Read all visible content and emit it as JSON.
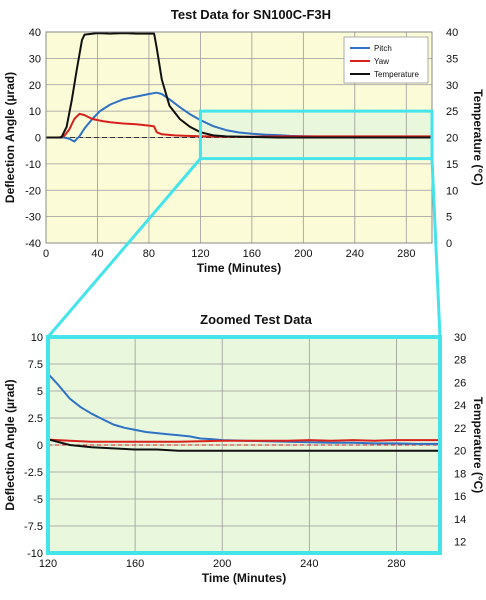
{
  "chart_data": [
    {
      "type": "line",
      "title": "Test Data for SN100C-F3H",
      "xlabel": "Time (Minutes)",
      "ylabel": "Deflection Angle (µrad)",
      "y2label": "Temperature (°C)",
      "xlim": [
        0,
        300
      ],
      "ylim": [
        -40,
        40
      ],
      "y2lim": [
        0,
        40
      ],
      "xticks": [
        0,
        40,
        80,
        120,
        160,
        200,
        240,
        280
      ],
      "yticks": [
        -40,
        -30,
        -20,
        -10,
        0,
        10,
        20,
        30,
        40
      ],
      "y2ticks": [
        0,
        5,
        10,
        15,
        20,
        25,
        30,
        35,
        40
      ],
      "grid": true,
      "legend_position": "top-right",
      "plot_background": "#fcfbd8",
      "zoom_region_background": "#e9f8dd",
      "zoom_box": {
        "x": [
          120,
          300
        ],
        "y": [
          -8,
          10
        ],
        "color": "#45e3ea"
      },
      "series": [
        {
          "name": "Pitch",
          "axis": "left",
          "color": "#2f72c4",
          "x": [
            0,
            10,
            14,
            18,
            22,
            26,
            30,
            36,
            42,
            50,
            60,
            70,
            80,
            86,
            90,
            96,
            104,
            112,
            120,
            130,
            140,
            150,
            160,
            170,
            180,
            190,
            200,
            220,
            240,
            260,
            280,
            300
          ],
          "y": [
            0,
            0,
            0,
            -0.5,
            -1.5,
            0.5,
            3.5,
            7,
            10,
            12.5,
            14.5,
            15.5,
            16.5,
            17,
            16.5,
            14.5,
            11.5,
            8.8,
            6.6,
            4.3,
            2.8,
            1.9,
            1.4,
            1.1,
            0.9,
            0.6,
            0.45,
            0.3,
            0.2,
            0.2,
            0.15,
            0.1
          ]
        },
        {
          "name": "Yaw",
          "axis": "left",
          "color": "#d6201c",
          "x": [
            0,
            10,
            14,
            18,
            22,
            26,
            30,
            36,
            44,
            50,
            60,
            70,
            80,
            84,
            86,
            90,
            100,
            110,
            120,
            140,
            160,
            180,
            200,
            220,
            240,
            260,
            280,
            300
          ],
          "y": [
            0,
            0,
            0.5,
            3,
            7,
            9,
            8.5,
            7,
            6.2,
            5.8,
            5.3,
            5,
            4.5,
            4.2,
            2,
            1.2,
            0.8,
            0.6,
            0.5,
            0.3,
            0.3,
            0.4,
            0.4,
            0.4,
            0.4,
            0.4,
            0.4,
            0.4
          ]
        },
        {
          "name": "Temperature",
          "axis": "right",
          "color": "#111111",
          "x": [
            0,
            12,
            16,
            20,
            24,
            28,
            30,
            40,
            50,
            60,
            70,
            80,
            84,
            86,
            90,
            96,
            104,
            112,
            120,
            130,
            140,
            160,
            180,
            200,
            220,
            240,
            260,
            280,
            300
          ],
          "y": [
            20,
            20,
            22,
            27,
            33,
            38.5,
            39.5,
            39.8,
            39.7,
            39.8,
            39.7,
            39.7,
            39.7,
            37,
            31,
            26,
            23.5,
            22,
            21,
            20.4,
            20.2,
            20.1,
            20,
            20,
            20,
            20,
            20,
            20,
            20
          ]
        }
      ]
    },
    {
      "type": "line",
      "title": "Zoomed Test Data",
      "xlabel": "Time (Minutes)",
      "ylabel": "Deflection Angle (µrad)",
      "y2label": "Temperature (°C)",
      "xlim": [
        120,
        300
      ],
      "ylim": [
        -10,
        10
      ],
      "y2lim": [
        11,
        30
      ],
      "xticks": [
        120,
        160,
        200,
        240,
        280
      ],
      "yticks": [
        -10,
        -7.5,
        -5,
        -2.5,
        0,
        2.5,
        5,
        7.5,
        10
      ],
      "y2ticks": [
        12,
        14,
        16,
        18,
        20,
        22,
        24,
        26,
        28,
        30
      ],
      "grid": true,
      "plot_background": "#e9f8dd",
      "border_color": "#45e3ea",
      "series": [
        {
          "name": "Pitch",
          "axis": "left",
          "color": "#2f72c4",
          "x": [
            120,
            125,
            130,
            135,
            140,
            145,
            150,
            155,
            160,
            165,
            170,
            175,
            180,
            185,
            190,
            195,
            200,
            210,
            220,
            230,
            240,
            250,
            260,
            270,
            280,
            290,
            300
          ],
          "y": [
            6.6,
            5.5,
            4.3,
            3.5,
            2.9,
            2.4,
            1.9,
            1.6,
            1.4,
            1.2,
            1.1,
            1.0,
            0.9,
            0.8,
            0.6,
            0.55,
            0.45,
            0.4,
            0.35,
            0.3,
            0.25,
            0.2,
            0.2,
            0.15,
            0.15,
            0.1,
            0.1
          ]
        },
        {
          "name": "Yaw",
          "axis": "left",
          "color": "#d6201c",
          "x": [
            120,
            130,
            140,
            150,
            160,
            170,
            180,
            190,
            200,
            210,
            220,
            230,
            240,
            250,
            260,
            270,
            280,
            290,
            300
          ],
          "y": [
            0.5,
            0.4,
            0.3,
            0.3,
            0.3,
            0.3,
            0.3,
            0.35,
            0.4,
            0.4,
            0.4,
            0.4,
            0.45,
            0.4,
            0.45,
            0.4,
            0.45,
            0.45,
            0.45
          ]
        },
        {
          "name": "Temperature",
          "axis": "right",
          "color": "#111111",
          "x": [
            120,
            130,
            140,
            150,
            160,
            170,
            180,
            190,
            200,
            210,
            220,
            230,
            240,
            250,
            260,
            270,
            280,
            290,
            300
          ],
          "y": [
            21.0,
            20.5,
            20.3,
            20.2,
            20.1,
            20.1,
            20.0,
            20.0,
            20.0,
            20.0,
            20.0,
            20.0,
            20.0,
            20.0,
            20.0,
            20.0,
            20.0,
            20.0,
            20.0
          ]
        }
      ]
    }
  ]
}
